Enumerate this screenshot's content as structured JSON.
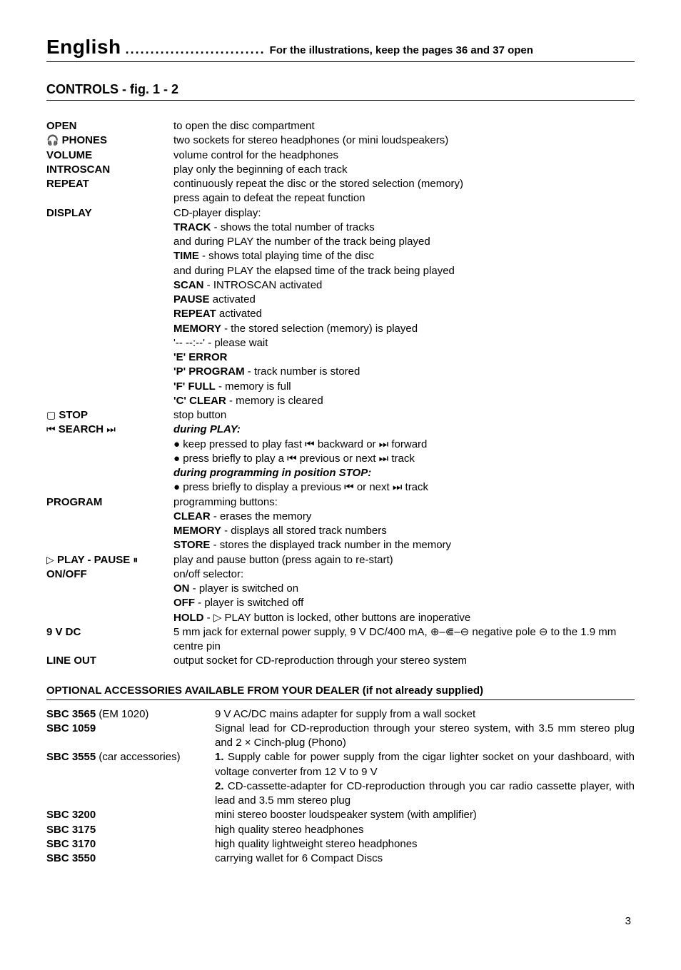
{
  "header": {
    "language": "English",
    "dots": "............................",
    "keep_open": "For the illustrations, keep the pages 36 and 37 open"
  },
  "section_title": "CONTROLS - fig. 1 - 2",
  "controls": {
    "open": {
      "label": "OPEN",
      "desc": "to open the disc compartment"
    },
    "phones": {
      "symbol": "🎧",
      "label": "PHONES",
      "desc": "two sockets for stereo headphones (or mini loudspeakers)"
    },
    "volume": {
      "label": "VOLUME",
      "desc": "volume control for the headphones"
    },
    "introscan": {
      "label": "INTROSCAN",
      "desc": "play only the beginning of each track"
    },
    "repeat": {
      "label": "REPEAT",
      "desc1": "continuously repeat the disc or the stored selection (memory)",
      "desc2": "press again to defeat the repeat function"
    },
    "display": {
      "label": "DISPLAY",
      "intro": "CD-player display:",
      "track_b": "TRACK",
      "track_t": " - shows the total number of tracks",
      "track2": "and during PLAY the number of the track being played",
      "time_b": "TIME",
      "time_t": " - shows total playing time of the disc",
      "time2": "and during PLAY the elapsed time of the track being played",
      "scan_b": "SCAN",
      "scan_t": " - INTROSCAN activated",
      "pause_b": "PAUSE",
      "pause_t": " activated",
      "repeat_b": "REPEAT",
      "repeat_t": " activated",
      "memory_b": "MEMORY",
      "memory_t": " - the stored selection (memory) is played",
      "wait": "'-- --:--' - please wait",
      "error": "'E' ERROR",
      "prog_b": "'P' PROGRAM",
      "prog_t": " - track number is stored",
      "full_b": "'F' FULL",
      "full_t": " - memory is full",
      "clear_b": "'C' CLEAR",
      "clear_t": " - memory is cleared"
    },
    "stop": {
      "symbol": "▢",
      "label": "STOP",
      "desc": "stop button"
    },
    "search": {
      "symbol_l": "⏮",
      "label": "SEARCH",
      "symbol_r": "⏭",
      "h1": "during PLAY:",
      "b1": "● keep pressed to play fast ⏮ backward or ⏭ forward",
      "b2": "● press briefly to play a ⏮ previous or next ⏭ track",
      "h2": "during programming in position STOP:",
      "b3": "● press briefly to display a previous ⏮ or next ⏭ track"
    },
    "program": {
      "label": "PROGRAM",
      "intro": "programming buttons:",
      "clear_b": "CLEAR",
      "clear_t": " - erases the memory",
      "memory_b": "MEMORY",
      "memory_t": " - displays all stored track numbers",
      "store_b": "STORE",
      "store_t": " - stores the displayed track number in the memory"
    },
    "play": {
      "symbol": "▷",
      "label": "PLAY - PAUSE",
      "symbol2": "⏸",
      "desc": "play and pause button (press again to re-start)"
    },
    "onoff": {
      "label": "ON/OFF",
      "intro": "on/off selector:",
      "on_b": "ON",
      "on_t": " - player is switched on",
      "off_b": "OFF",
      "off_t": " - player is switched off",
      "hold_b": "HOLD",
      "hold_t": " - ▷ PLAY button is locked, other buttons are inoperative"
    },
    "ninev": {
      "label": "9 V DC",
      "desc": "5 mm jack for external power supply, 9 V DC/400 mA, ⊕–⋐–⊖ negative pole ⊖ to the 1.9 mm centre pin"
    },
    "lineout": {
      "label": "LINE OUT",
      "desc": "output socket for CD-reproduction through your stereo system"
    }
  },
  "acc_title": "OPTIONAL ACCESSORIES AVAILABLE FROM YOUR DEALER (if not already supplied)",
  "accessories": {
    "a1": {
      "code": "SBC 3565",
      "note": " (EM 1020)",
      "desc": "9 V AC/DC mains adapter for supply from a wall socket"
    },
    "a2": {
      "code": "SBC 1059",
      "desc": "Signal lead for CD-reproduction through your stereo system, with 3.5 mm stereo plug and 2 × Cinch-plug (Phono)"
    },
    "a3": {
      "code": "SBC 3555",
      "note": " (car accessories)",
      "n1": "1.",
      "d1": " Supply cable for power supply from the cigar lighter socket on your dashboard, with voltage converter from 12 V to 9 V",
      "n2": "2.",
      "d2": " CD-cassette-adapter for CD-reproduction through you car radio cassette player, with lead and 3.5 mm stereo plug"
    },
    "a4": {
      "code": "SBC 3200",
      "desc": "mini stereo booster loudspeaker system (with amplifier)"
    },
    "a5": {
      "code": "SBC 3175",
      "desc": "high quality stereo headphones"
    },
    "a6": {
      "code": "SBC 3170",
      "desc": "high quality lightweight stereo headphones"
    },
    "a7": {
      "code": "SBC 3550",
      "desc": "carrying wallet for 6 Compact Discs"
    }
  },
  "page_number": "3"
}
